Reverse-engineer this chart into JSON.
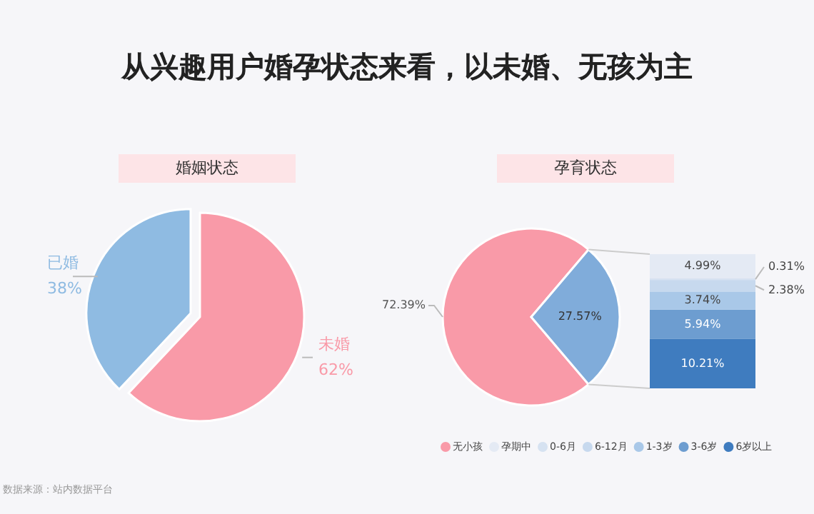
{
  "chart_data": [
    {
      "type": "pie",
      "title": "从兴趣用户婚孕状态来看，以未婚、无孩为主",
      "subtitle": "婚姻状态",
      "categories": [
        "未婚",
        "已婚"
      ],
      "values": [
        62,
        38
      ],
      "value_labels": [
        "62%",
        "38%"
      ],
      "colors": [
        "#f99aa8",
        "#8fbbe2"
      ],
      "annotations": [
        "数据来源：站内数据平台"
      ]
    },
    {
      "type": "pie",
      "title": "孕育状态",
      "categories": [
        "无小孩",
        null
      ],
      "values": [
        72.39,
        27.57
      ],
      "value_labels": [
        "72.39%",
        "27.57%"
      ],
      "colors": [
        "#f99aa8",
        "#80acda"
      ],
      "legend": "bottom"
    },
    {
      "type": "bar",
      "stacked": true,
      "categories": [
        null
      ],
      "legend": "bottom",
      "series": [
        {
          "name": "6岁以上",
          "color": "#3f7cbf",
          "values": [
            10.21
          ],
          "value_labels": [
            "10.21%"
          ]
        },
        {
          "name": "3-6岁",
          "color": "#6d9dd0",
          "values": [
            5.94
          ],
          "value_labels": [
            "5.94%"
          ]
        },
        {
          "name": "1-3岁",
          "color": "#a9c8e8",
          "values": [
            3.74
          ],
          "value_labels": [
            "3.74%"
          ]
        },
        {
          "name": "6-12月",
          "color": "#c7d9ee",
          "values": [
            2.38
          ],
          "value_labels": [
            "2.38%"
          ]
        },
        {
          "name": "0-6月",
          "color": "#d6e2f1",
          "values": [
            0.31
          ],
          "value_labels": [
            "0.31%"
          ]
        },
        {
          "name": "孕期中",
          "color": "#e4eaf4",
          "values": [
            4.99
          ],
          "value_labels": [
            "4.99%"
          ]
        }
      ]
    }
  ]
}
